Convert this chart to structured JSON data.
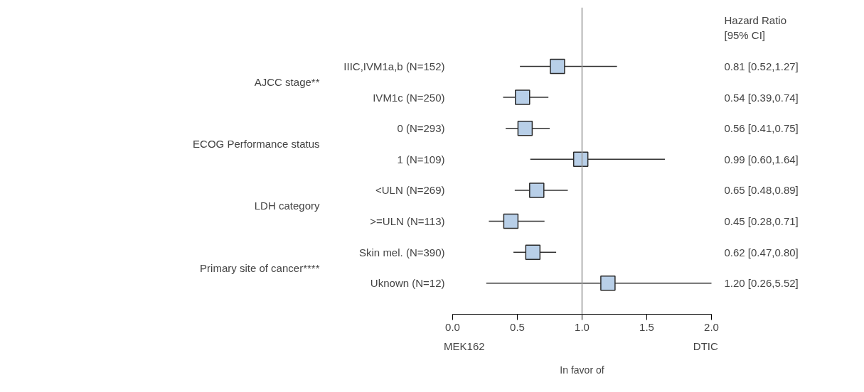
{
  "chart_data": {
    "type": "scatter",
    "orientation": "horizontal",
    "categories": [
      "IIIC,IVM1a,b (N=152)",
      "IVM1c (N=250)",
      "0 (N=293)",
      "1 (N=109)",
      "<ULN (N=269)",
      ">=ULN (N=113)",
      "Skin mel. (N=390)",
      "Uknown (N=12)"
    ],
    "series": [
      {
        "color": "#b8cfe8",
        "values": [
          0.81,
          0.54,
          0.56,
          0.99,
          0.65,
          0.45,
          0.62,
          1.2
        ],
        "errors": [
          [
            0.52,
            1.27
          ],
          [
            0.39,
            0.74
          ],
          [
            0.41,
            0.75
          ],
          [
            0.6,
            1.64
          ],
          [
            0.48,
            0.89
          ],
          [
            0.28,
            0.71
          ],
          [
            0.47,
            0.8
          ],
          [
            0.26,
            5.52
          ]
        ],
        "value_labels": [
          "0.81  [0.52,1.27]",
          "0.54  [0.39,0.74]",
          "0.56  [0.41,0.75]",
          "0.99  [0.60,1.64]",
          "0.65  [0.48,0.89]",
          "0.45  [0.28,0.71]",
          "0.62  [0.47,0.80]",
          "1.20  [0.26,5.52]"
        ]
      }
    ],
    "xlim": [
      0,
      2
    ],
    "xticks": [
      {
        "value": 0,
        "label": "0.0"
      },
      0.5,
      {
        "value": 1,
        "label": "1.0"
      },
      1.5,
      {
        "value": 2,
        "label": "2.0"
      }
    ],
    "xlabel": "In favor of",
    "marker": "square",
    "grid": false,
    "ref_lines": [
      {
        "axis": "x",
        "value": 1,
        "color": "#999999"
      }
    ],
    "annotations": [
      "AJCC stage**",
      "ECOG Performance status",
      "LDH category",
      "Primary site of cancer****",
      "Hazard Ratio",
      "[95% CI]",
      "MEK162",
      "DTIC"
    ]
  }
}
